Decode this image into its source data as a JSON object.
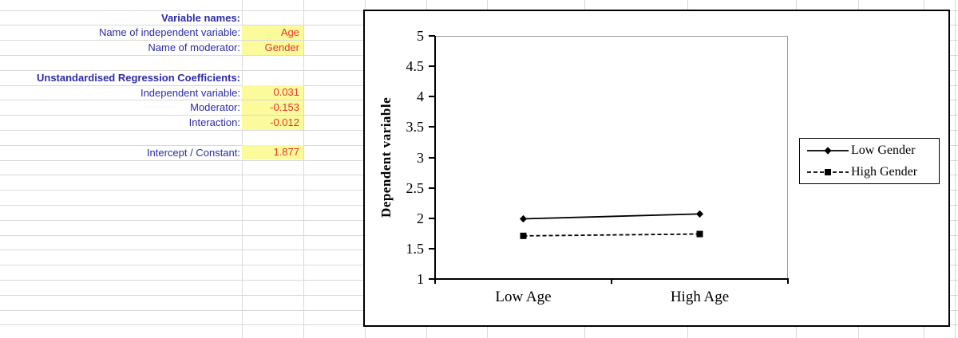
{
  "sheet": {
    "rows": [
      {
        "key": "variable-names-header",
        "label": "Variable names:",
        "value": "",
        "header": true
      },
      {
        "key": "iv-name",
        "label": "Name of independent variable:",
        "value": "Age",
        "header": false
      },
      {
        "key": "moderator-name",
        "label": "Name of moderator:",
        "value": "Gender",
        "header": false
      },
      {
        "key": "spacer-1",
        "label": "",
        "value": "",
        "header": false
      },
      {
        "key": "coefficients-header",
        "label": "Unstandardised Regression Coefficients:",
        "value": "",
        "header": true
      },
      {
        "key": "iv-coefficient",
        "label": "Independent variable:",
        "value": "0.031",
        "header": false
      },
      {
        "key": "moderator-coefficient",
        "label": "Moderator:",
        "value": "-0.153",
        "header": false
      },
      {
        "key": "interaction-coefficient",
        "label": "Interaction:",
        "value": "-0.012",
        "header": false
      },
      {
        "key": "spacer-2",
        "label": "",
        "value": "",
        "header": false
      },
      {
        "key": "intercept",
        "label": "Intercept / Constant:",
        "value": "1.877",
        "header": false
      }
    ],
    "colors": {
      "label_blue": "#2b2ba8",
      "value_red": "#e9332b",
      "cell_yellow": "#fbfb9c",
      "gridline_gray": "#d9d9d9"
    }
  },
  "chart_data": {
    "type": "line",
    "title": "",
    "xlabel": "",
    "ylabel": "Dependent variable",
    "categories": [
      "Low Age",
      "High Age"
    ],
    "series": [
      {
        "name": "Low Gender",
        "values": [
          1.99,
          2.07
        ],
        "line": "solid",
        "marker": "diamond",
        "color": "#000000"
      },
      {
        "name": "High Gender",
        "values": [
          1.71,
          1.74
        ],
        "line": "dashed",
        "marker": "square",
        "color": "#000000"
      }
    ],
    "ylim": [
      1,
      5
    ],
    "ytick_step": 0.5,
    "ytick_labels": [
      "5",
      "4.5",
      "4",
      "3.5",
      "3",
      "2.5",
      "2",
      "1.5",
      "1"
    ],
    "grid": false,
    "legend_position": "right"
  }
}
